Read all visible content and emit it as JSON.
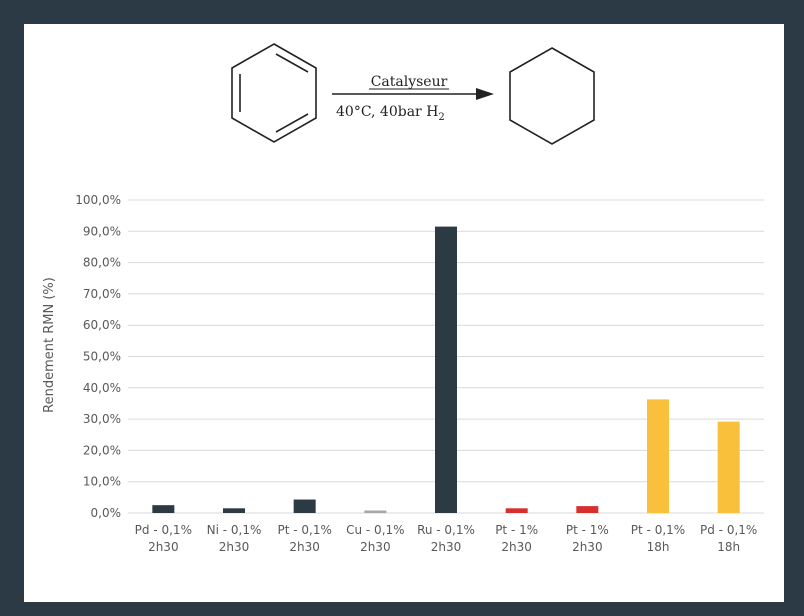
{
  "colors": {
    "background": "#2b3a44",
    "dark": "#2c3a44",
    "gray": "#a6a6a6",
    "red": "#d62f2f",
    "yellow": "#f8c03b",
    "grid": "#d9d9d9"
  },
  "reaction": {
    "above_arrow": "Catalyseur",
    "below_arrow_main": "40°C, 40bar H",
    "below_arrow_sub": "2"
  },
  "chart_data": {
    "type": "bar",
    "title": "",
    "xlabel": "",
    "ylabel": "Rendement RMN (%)",
    "ylim": [
      0,
      100
    ],
    "y_ticks": [
      "0,0%",
      "10,0%",
      "20,0%",
      "30,0%",
      "40,0%",
      "50,0%",
      "60,0%",
      "70,0%",
      "80,0%",
      "90,0%",
      "100,0%"
    ],
    "categories": [
      {
        "line1": "Pd - 0,1%",
        "line2": "2h30"
      },
      {
        "line1": "Ni - 0,1%",
        "line2": "2h30"
      },
      {
        "line1": "Pt - 0,1%",
        "line2": "2h30"
      },
      {
        "line1": "Cu - 0,1%",
        "line2": "2h30"
      },
      {
        "line1": "Ru - 0,1%",
        "line2": "2h30"
      },
      {
        "line1": "Pt - 1%",
        "line2": "2h30"
      },
      {
        "line1": "Pt - 1%",
        "line2": "2h30"
      },
      {
        "line1": "Pt - 0,1%",
        "line2": "18h"
      },
      {
        "line1": "Pd - 0,1%",
        "line2": "18h"
      }
    ],
    "values": [
      2.5,
      1.5,
      4.3,
      0.8,
      91.5,
      1.5,
      2.2,
      36.3,
      29.2
    ],
    "bar_colors": [
      "#2c3a44",
      "#2c3a44",
      "#2c3a44",
      "#a6a6a6",
      "#2c3a44",
      "#d62f2f",
      "#d62f2f",
      "#f8c03b",
      "#f8c03b"
    ],
    "grid": true,
    "legend": "none"
  }
}
